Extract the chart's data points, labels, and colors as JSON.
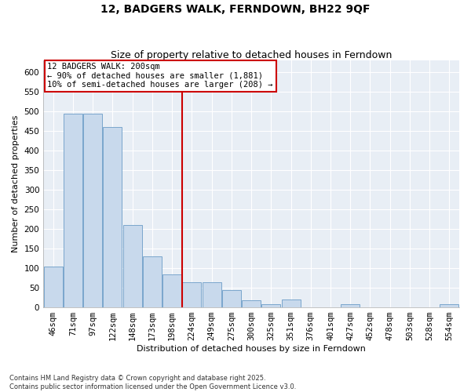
{
  "title": "12, BADGERS WALK, FERNDOWN, BH22 9QF",
  "subtitle": "Size of property relative to detached houses in Ferndown",
  "xlabel": "Distribution of detached houses by size in Ferndown",
  "ylabel": "Number of detached properties",
  "categories": [
    "46sqm",
    "71sqm",
    "97sqm",
    "122sqm",
    "148sqm",
    "173sqm",
    "198sqm",
    "224sqm",
    "249sqm",
    "275sqm",
    "300sqm",
    "325sqm",
    "351sqm",
    "376sqm",
    "401sqm",
    "427sqm",
    "452sqm",
    "478sqm",
    "503sqm",
    "528sqm",
    "554sqm"
  ],
  "values": [
    105,
    495,
    495,
    460,
    210,
    130,
    85,
    65,
    65,
    45,
    18,
    8,
    20,
    0,
    0,
    8,
    0,
    0,
    0,
    0,
    8
  ],
  "bar_color": "#c8d9ec",
  "bar_edge_color": "#7aa6cc",
  "vline_index": 6,
  "vline_color": "#cc0000",
  "annotation_text": "12 BADGERS WALK: 200sqm\n← 90% of detached houses are smaller (1,881)\n10% of semi-detached houses are larger (208) →",
  "annotation_box_color": "#cc0000",
  "ylim": [
    0,
    630
  ],
  "yticks": [
    0,
    50,
    100,
    150,
    200,
    250,
    300,
    350,
    400,
    450,
    500,
    550,
    600
  ],
  "background_color": "#e8eef5",
  "footer_text": "Contains HM Land Registry data © Crown copyright and database right 2025.\nContains public sector information licensed under the Open Government Licence v3.0.",
  "title_fontsize": 10,
  "subtitle_fontsize": 9,
  "axis_label_fontsize": 8,
  "tick_fontsize": 7.5,
  "annotation_fontsize": 7.5,
  "footer_fontsize": 6
}
